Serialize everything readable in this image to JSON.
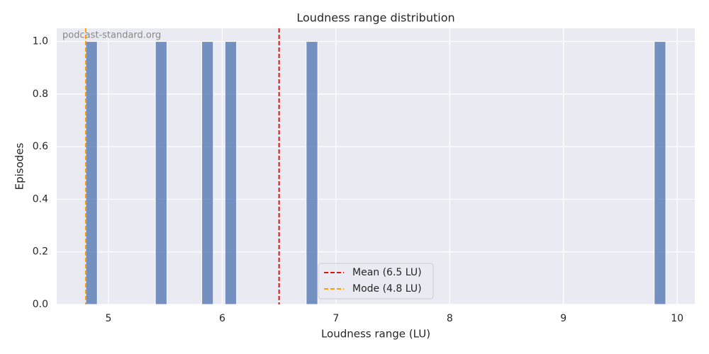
{
  "chart_data": {
    "type": "histogram",
    "title": "Loudness range distribution",
    "x_label": "Loudness range (LU)",
    "y_label": "Episodes",
    "watermark": "podcast-standard.org",
    "bins": [
      4.8,
      4.902,
      5.004,
      5.106,
      5.208,
      5.31,
      5.412,
      5.514,
      5.616,
      5.718,
      5.82,
      5.922,
      6.024,
      6.126,
      6.228,
      6.33,
      6.432,
      6.534,
      6.636,
      6.738,
      6.84,
      6.942,
      7.044,
      7.146,
      7.248,
      7.35,
      7.452,
      7.554,
      7.656,
      7.758,
      7.86,
      7.962,
      8.064,
      8.166,
      8.268,
      8.37,
      8.472,
      8.574,
      8.676,
      8.778,
      8.88,
      8.982,
      9.084,
      9.186,
      9.288,
      9.39,
      9.492,
      9.594,
      9.696,
      9.798,
      9.9
    ],
    "counts": [
      1,
      0,
      0,
      0,
      0,
      0,
      1,
      0,
      0,
      0,
      1,
      0,
      1,
      0,
      0,
      0,
      0,
      0,
      0,
      1,
      0,
      0,
      0,
      0,
      0,
      0,
      0,
      0,
      0,
      0,
      0,
      0,
      0,
      0,
      0,
      0,
      0,
      0,
      0,
      0,
      0,
      0,
      0,
      0,
      0,
      0,
      0,
      0,
      0,
      1
    ],
    "color": "#4c72b0",
    "vlines": [
      {
        "name": "Mean (6.5 LU)",
        "value": 6.5,
        "color": "#e3120b"
      },
      {
        "name": "Mode (4.8 LU)",
        "value": 4.8,
        "color": "#ff9f00"
      }
    ],
    "xlim": [
      4.545,
      10.155
    ],
    "ylim": [
      0,
      1.05
    ],
    "xticks": [
      5,
      6,
      7,
      8,
      9,
      10
    ],
    "yticks": [
      {
        "value": 0,
        "label": "0.0"
      },
      0.2,
      0.4,
      0.6,
      0.8,
      {
        "value": 1,
        "label": "1.0"
      }
    ],
    "grid": true,
    "legend_position": "lower center"
  }
}
